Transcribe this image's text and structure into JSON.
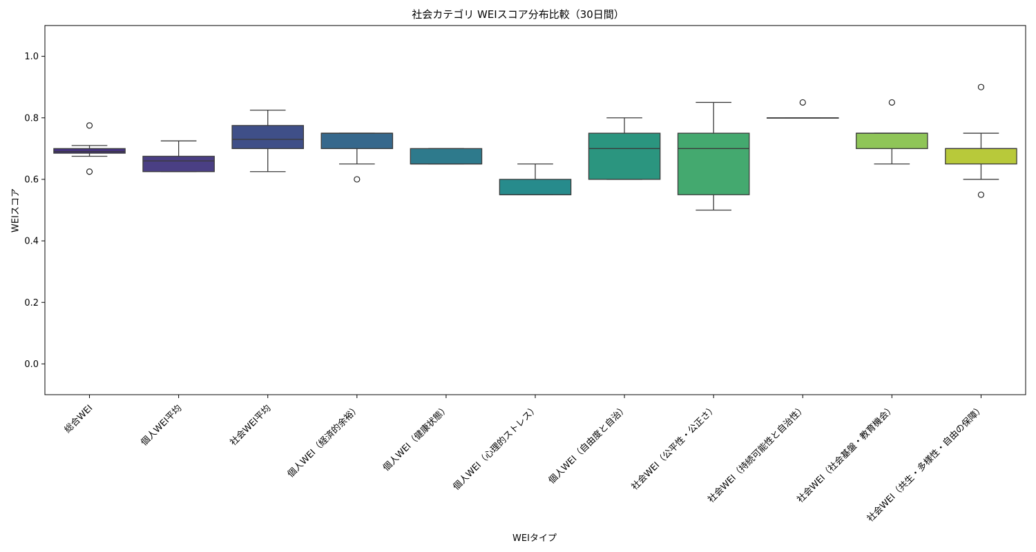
{
  "chart_data": {
    "type": "box",
    "title": "社会カテゴリ WEIスコア分布比較（30日間）",
    "xlabel": "WEIタイプ",
    "ylabel": "WEIスコア",
    "ylim": [
      -0.1,
      1.1
    ],
    "yticks": [
      "0.0",
      "0.2",
      "0.4",
      "0.6",
      "0.8",
      "1.0"
    ],
    "grid": false,
    "legend": "none",
    "boxes": [
      {
        "label": "総合WEI",
        "q1": 0.685,
        "median": 0.69,
        "q3": 0.7,
        "whisker_low": 0.675,
        "whisker_high": 0.71,
        "outliers": [
          0.775,
          0.625
        ],
        "color": "#46337e"
      },
      {
        "label": "個人WEI平均",
        "q1": 0.625,
        "median": 0.66,
        "q3": 0.675,
        "whisker_low": 0.625,
        "whisker_high": 0.725,
        "outliers": [],
        "color": "#4a3f84"
      },
      {
        "label": "社会WEI平均",
        "q1": 0.7,
        "median": 0.73,
        "q3": 0.775,
        "whisker_low": 0.625,
        "whisker_high": 0.825,
        "outliers": [],
        "color": "#3f4f88"
      },
      {
        "label": "個人WEI（経済的余裕）",
        "q1": 0.7,
        "median": 0.75,
        "q3": 0.75,
        "whisker_low": 0.65,
        "whisker_high": 0.75,
        "outliers": [
          0.6
        ],
        "color": "#36688c"
      },
      {
        "label": "個人WEI（健康状態）",
        "q1": 0.65,
        "median": 0.65,
        "q3": 0.7,
        "whisker_low": 0.65,
        "whisker_high": 0.7,
        "outliers": [],
        "color": "#2e7a8c"
      },
      {
        "label": "個人WEI（心理的ストレス）",
        "q1": 0.55,
        "median": 0.55,
        "q3": 0.6,
        "whisker_low": 0.55,
        "whisker_high": 0.65,
        "outliers": [],
        "color": "#278b8c"
      },
      {
        "label": "個人WEI（自由度と自治）",
        "q1": 0.6,
        "median": 0.7,
        "q3": 0.75,
        "whisker_low": 0.6,
        "whisker_high": 0.8,
        "outliers": [],
        "color": "#2b957f"
      },
      {
        "label": "社会WEI（公平性・公正さ）",
        "q1": 0.55,
        "median": 0.7,
        "q3": 0.75,
        "whisker_low": 0.5,
        "whisker_high": 0.85,
        "outliers": [],
        "color": "#44a96f"
      },
      {
        "label": "社会WEI（持続可能性と自治性）",
        "q1": 0.8,
        "median": 0.8,
        "q3": 0.8,
        "whisker_low": 0.8,
        "whisker_high": 0.8,
        "outliers": [
          0.85
        ],
        "color": "#6cbf5a"
      },
      {
        "label": "社会WEI（社会基盤・教育機会）",
        "q1": 0.7,
        "median": 0.75,
        "q3": 0.75,
        "whisker_low": 0.65,
        "whisker_high": 0.75,
        "outliers": [
          0.85
        ],
        "color": "#8fc558"
      },
      {
        "label": "社会WEI（共生・多様性・自由の保障）",
        "q1": 0.65,
        "median": 0.7,
        "q3": 0.7,
        "whisker_low": 0.6,
        "whisker_high": 0.75,
        "outliers": [
          0.9,
          0.55
        ],
        "color": "#b8c93a"
      }
    ]
  }
}
